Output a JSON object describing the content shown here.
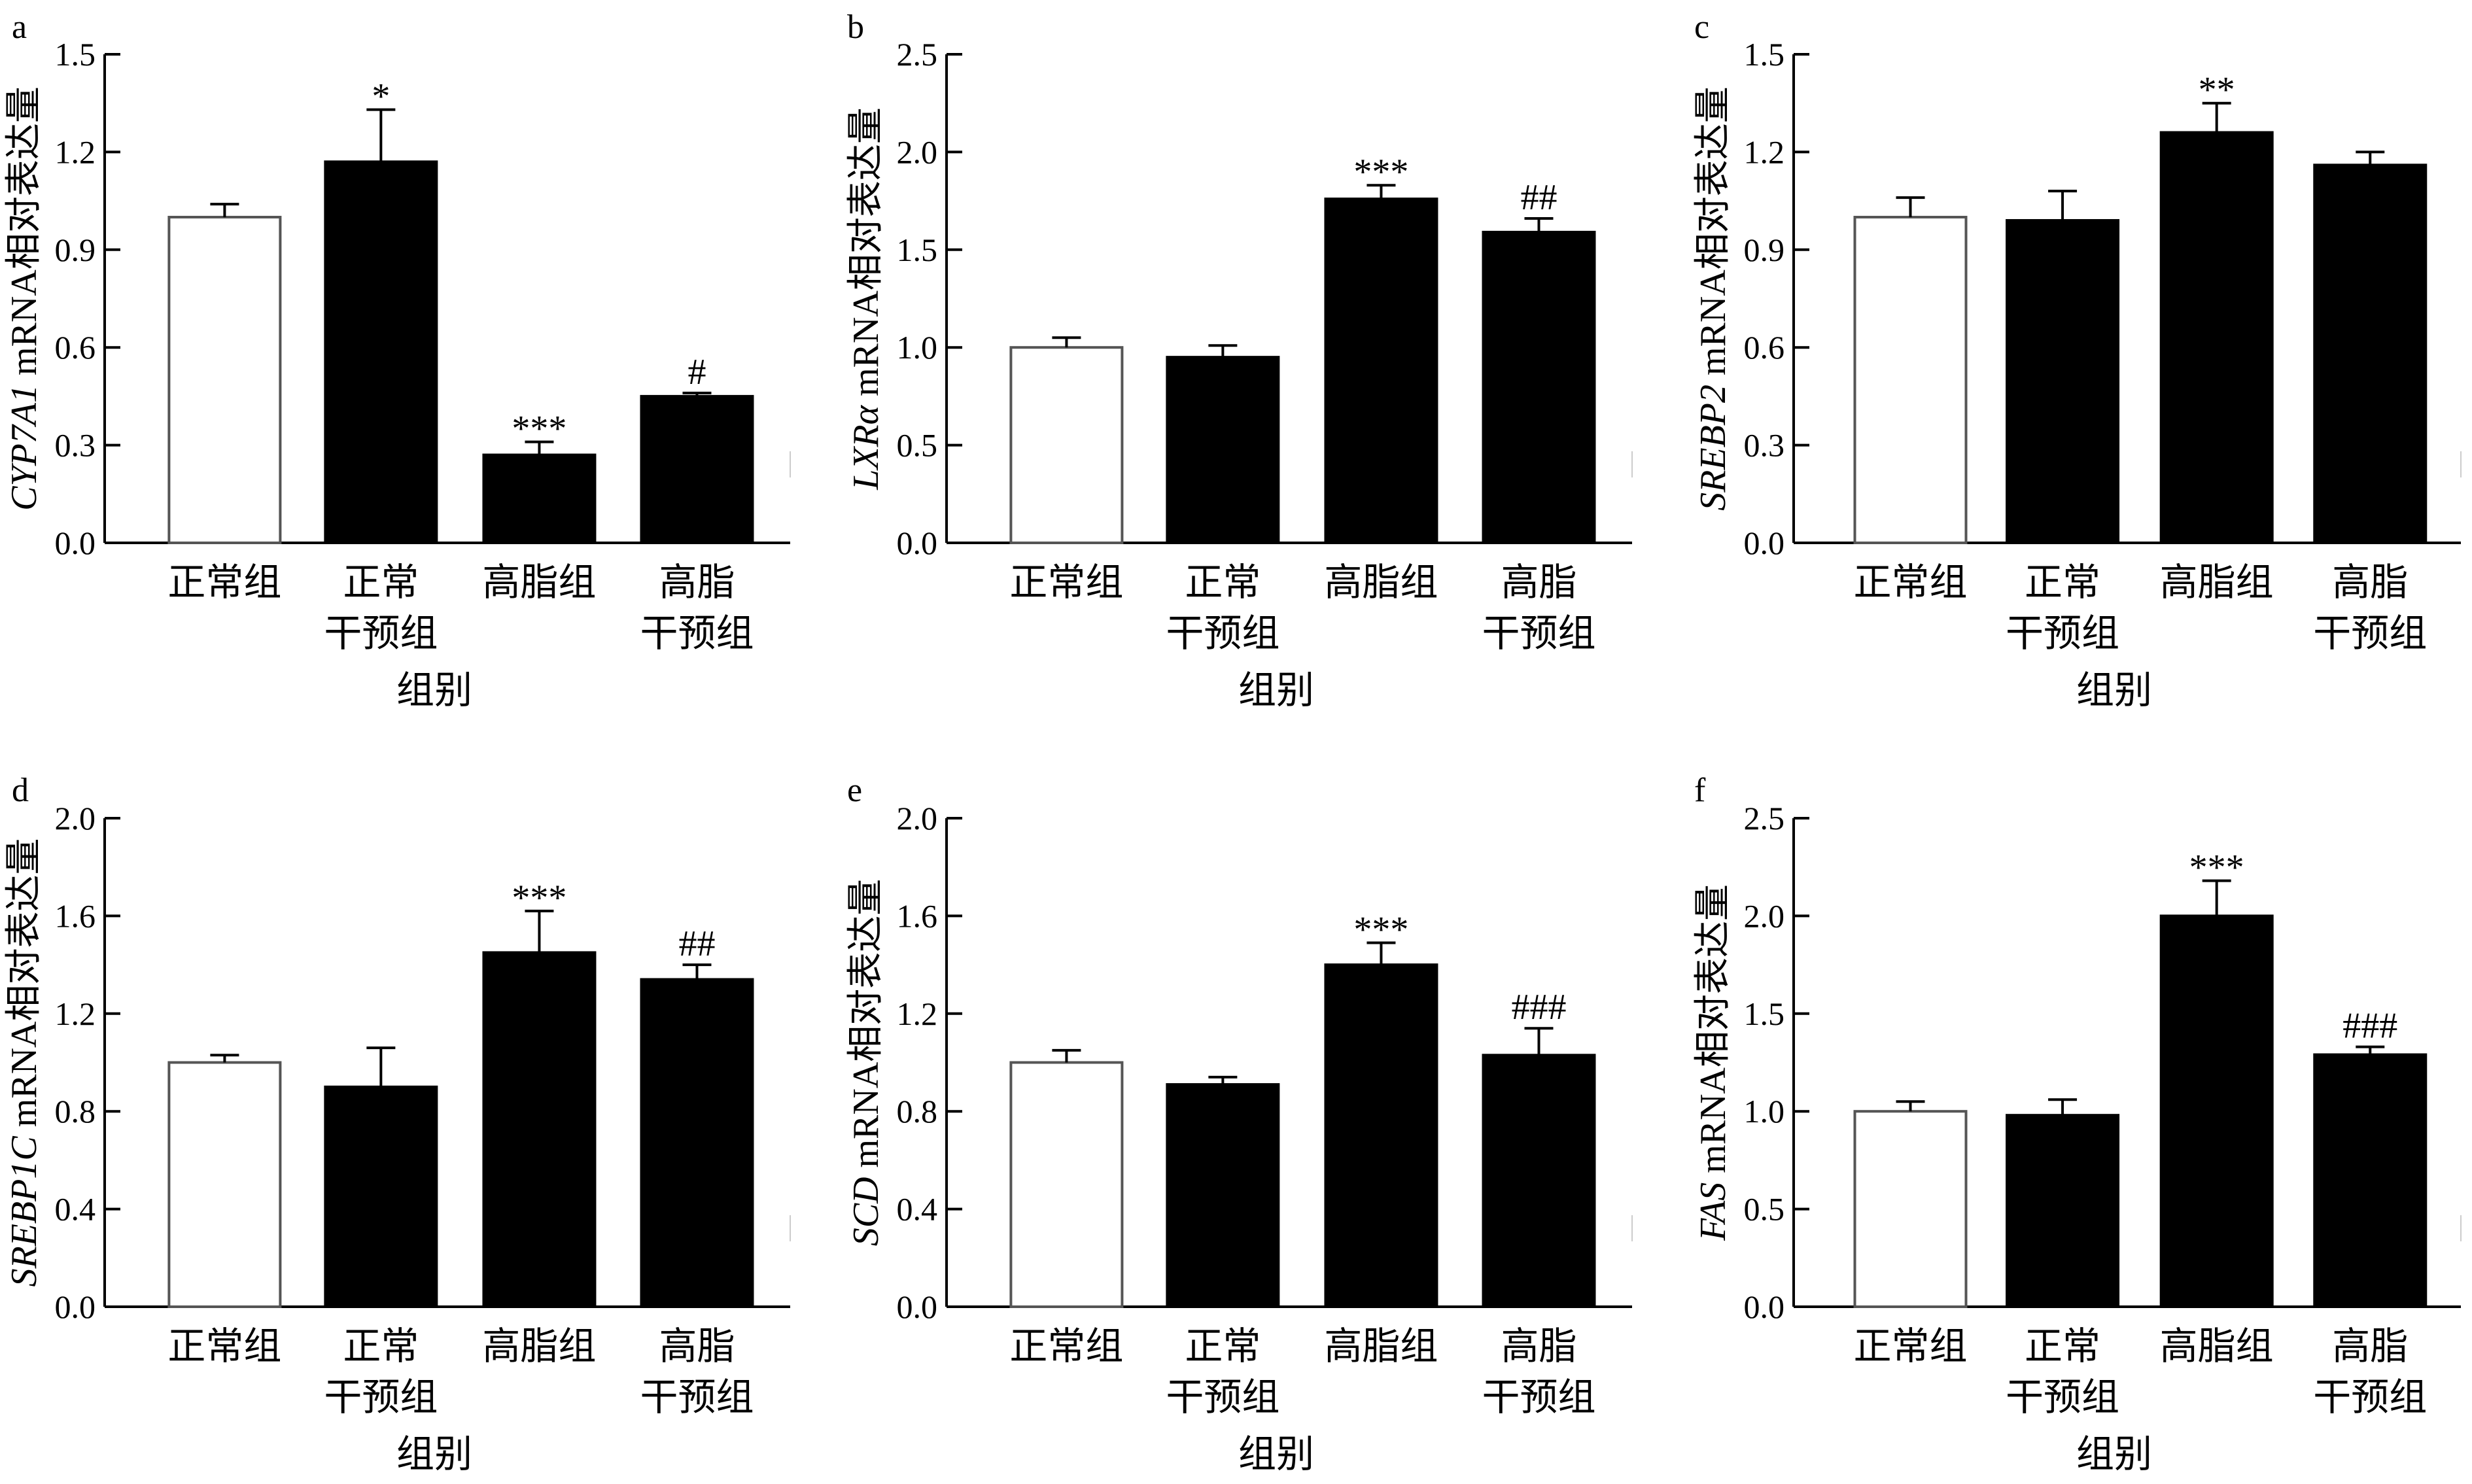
{
  "chart_data": [
    {
      "panel": "a",
      "type": "bar",
      "ylabel_gene": "CYP7A1",
      "ylabel_rest": " mRNA相对表达量",
      "xlabel": "组别",
      "ylim": [
        0,
        1.5
      ],
      "yticks": [
        "0.0",
        "0.3",
        "0.6",
        "0.9",
        "1.2",
        "1.5"
      ],
      "categories": [
        [
          "正常组"
        ],
        [
          "正常",
          "干预组"
        ],
        [
          "高脂组"
        ],
        [
          "高脂",
          "干预组"
        ]
      ],
      "values": [
        1.0,
        1.17,
        0.27,
        0.45
      ],
      "errors": [
        0.04,
        0.16,
        0.04,
        0.01
      ],
      "fills": [
        "white",
        "black",
        "black",
        "black"
      ],
      "annotations": [
        "",
        "*",
        "***",
        "#"
      ]
    },
    {
      "panel": "b",
      "type": "bar",
      "ylabel_gene": "LXRα",
      "ylabel_rest": " mRNA相对表达量",
      "xlabel": "组别",
      "ylim": [
        0,
        2.5
      ],
      "yticks": [
        "0.0",
        "0.5",
        "1.0",
        "1.5",
        "2.0",
        "2.5"
      ],
      "categories": [
        [
          "正常组"
        ],
        [
          "正常",
          "干预组"
        ],
        [
          "高脂组"
        ],
        [
          "高脂",
          "干预组"
        ]
      ],
      "values": [
        1.0,
        0.95,
        1.76,
        1.59
      ],
      "errors": [
        0.05,
        0.06,
        0.07,
        0.07
      ],
      "fills": [
        "white",
        "black",
        "black",
        "black"
      ],
      "annotations": [
        "",
        "",
        "***",
        "##"
      ]
    },
    {
      "panel": "c",
      "type": "bar",
      "ylabel_gene": "SREBP2",
      "ylabel_rest": " mRNA相对表达量",
      "xlabel": "组别",
      "ylim": [
        0,
        1.5
      ],
      "yticks": [
        "0.0",
        "0.3",
        "0.6",
        "0.9",
        "1.2",
        "1.5"
      ],
      "categories": [
        [
          "正常组"
        ],
        [
          "正常",
          "干预组"
        ],
        [
          "高脂组"
        ],
        [
          "高脂",
          "干预组"
        ]
      ],
      "values": [
        1.0,
        0.99,
        1.26,
        1.16
      ],
      "errors": [
        0.06,
        0.09,
        0.09,
        0.04
      ],
      "fills": [
        "white",
        "black",
        "black",
        "black"
      ],
      "annotations": [
        "",
        "",
        "**",
        ""
      ]
    },
    {
      "panel": "d",
      "type": "bar",
      "ylabel_gene": "SREBP1C",
      "ylabel_rest": " mRNA相对表达量",
      "xlabel": "组别",
      "ylim": [
        0,
        2.0
      ],
      "yticks": [
        "0.0",
        "0.4",
        "0.8",
        "1.2",
        "1.6",
        "2.0"
      ],
      "categories": [
        [
          "正常组"
        ],
        [
          "正常",
          "干预组"
        ],
        [
          "高脂组"
        ],
        [
          "高脂",
          "干预组"
        ]
      ],
      "values": [
        1.0,
        0.9,
        1.45,
        1.34
      ],
      "errors": [
        0.03,
        0.16,
        0.17,
        0.06
      ],
      "fills": [
        "white",
        "black",
        "black",
        "black"
      ],
      "annotations": [
        "",
        "",
        "***",
        "##"
      ]
    },
    {
      "panel": "e",
      "type": "bar",
      "ylabel_gene": "SCD",
      "ylabel_rest": " mRNA相对表达量",
      "xlabel": "组别",
      "ylim": [
        0,
        2.0
      ],
      "yticks": [
        "0.0",
        "0.4",
        "0.8",
        "1.2",
        "1.6",
        "2.0"
      ],
      "categories": [
        [
          "正常组"
        ],
        [
          "正常",
          "干预组"
        ],
        [
          "高脂组"
        ],
        [
          "高脂",
          "干预组"
        ]
      ],
      "values": [
        1.0,
        0.91,
        1.4,
        1.03
      ],
      "errors": [
        0.05,
        0.03,
        0.09,
        0.11
      ],
      "fills": [
        "white",
        "black",
        "black",
        "black"
      ],
      "annotations": [
        "",
        "",
        "***",
        "###"
      ]
    },
    {
      "panel": "f",
      "type": "bar",
      "ylabel_gene": "FAS",
      "ylabel_rest": " mRNA相对表达量",
      "xlabel": "组别",
      "ylim": [
        0,
        2.5
      ],
      "yticks": [
        "0.0",
        "0.5",
        "1.0",
        "1.5",
        "2.0",
        "2.5"
      ],
      "categories": [
        [
          "正常组"
        ],
        [
          "正常",
          "干预组"
        ],
        [
          "高脂组"
        ],
        [
          "高脂",
          "干预组"
        ]
      ],
      "values": [
        1.0,
        0.98,
        2.0,
        1.29
      ],
      "errors": [
        0.05,
        0.08,
        0.18,
        0.04
      ],
      "fills": [
        "white",
        "black",
        "black",
        "black"
      ],
      "annotations": [
        "",
        "",
        "***",
        "###"
      ]
    }
  ]
}
